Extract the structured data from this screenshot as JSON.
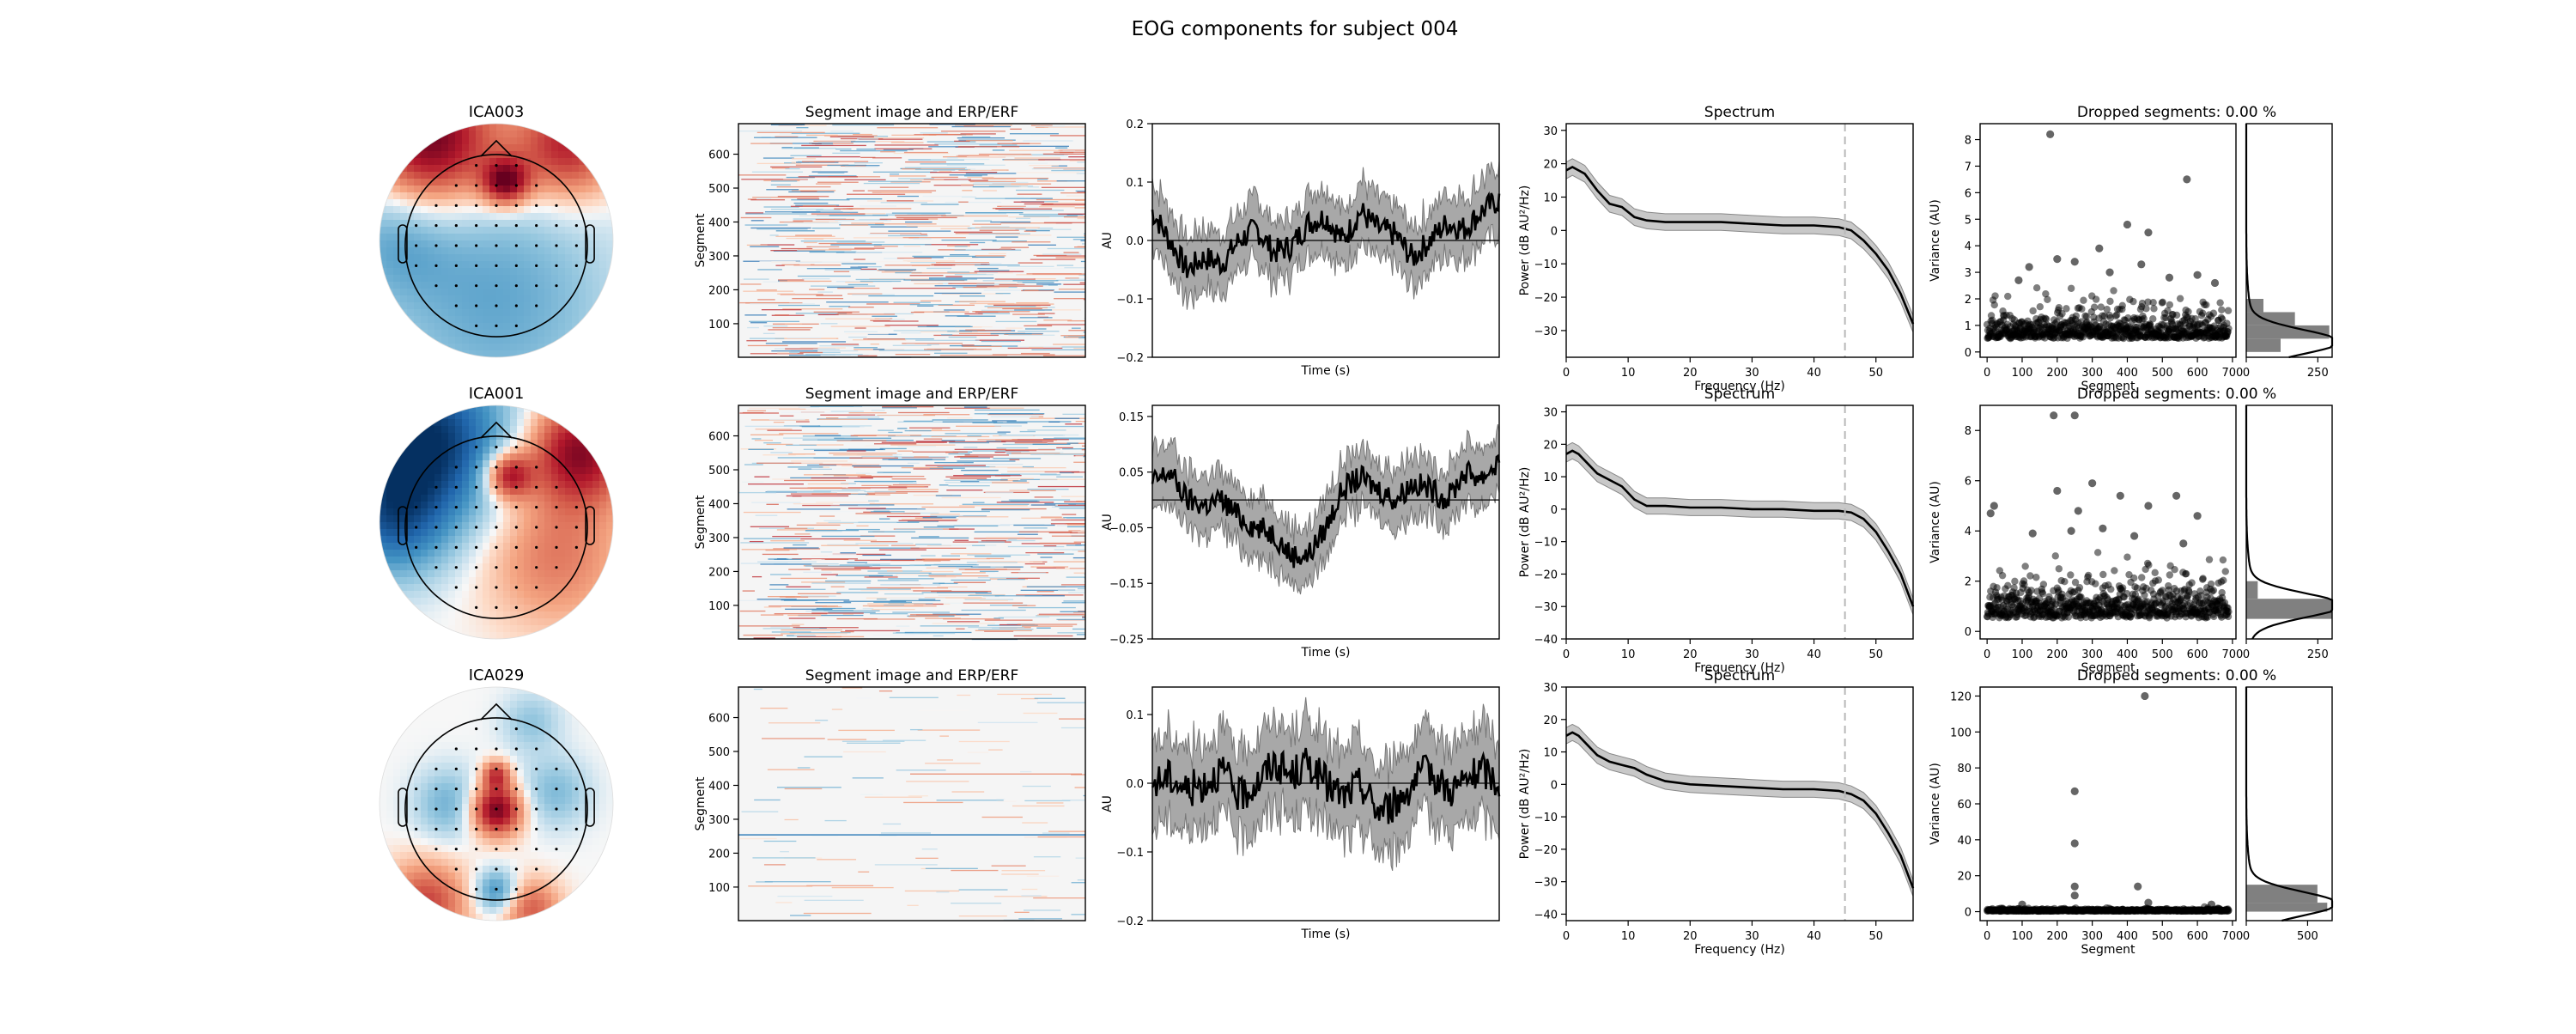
{
  "figure_title": "EOG components for subject 004",
  "colors": {
    "line": "#000000",
    "band": "#a8a8a8",
    "cutoff": "#b8b8b8",
    "point": "#000000",
    "hist": "#808080"
  },
  "chart_data": [
    {
      "component": "ICA003",
      "topomap": {
        "type": "heatmap",
        "pattern": "frontal-positive",
        "blobs": [
          {
            "x": -0.55,
            "y": 0.85,
            "r": 0.55,
            "v": 1.0
          },
          {
            "x": 0.6,
            "y": 0.8,
            "r": 0.45,
            "v": 0.75
          },
          {
            "x": 0.08,
            "y": 0.5,
            "r": 0.2,
            "v": 0.9
          },
          {
            "x": 0.0,
            "y": -0.5,
            "r": 1.0,
            "v": -0.4
          },
          {
            "x": -0.9,
            "y": 0.0,
            "r": 0.5,
            "v": -0.3
          }
        ]
      },
      "segment_image": {
        "type": "heatmap",
        "title": "Segment image and ERP/ERF",
        "ylabel": "Segment",
        "yticks": [
          100,
          200,
          300,
          400,
          500,
          600
        ],
        "ylim": [
          1,
          690
        ],
        "variance": 1.0
      },
      "erp": {
        "type": "line",
        "xlabel": "Time (s)",
        "ylabel": "AU",
        "ylim": [
          -0.2,
          0.2
        ],
        "yticks": [
          -0.2,
          -0.1,
          0.0,
          0.1,
          0.2
        ],
        "yticklabels": [
          "−0.2",
          "−0.1",
          "0.0",
          "0.1",
          "0.2"
        ],
        "hline": 0.0,
        "x": [
          0,
          0.05,
          0.1,
          0.15,
          0.2,
          0.25,
          0.3,
          0.35,
          0.4,
          0.45,
          0.5,
          0.55,
          0.6,
          0.65,
          0.7,
          0.75,
          0.8,
          0.85,
          0.9,
          0.95,
          1.0
        ],
        "mean": [
          0.05,
          0.0,
          -0.05,
          -0.03,
          -0.04,
          0.0,
          0.02,
          -0.02,
          -0.01,
          0.03,
          0.04,
          0.0,
          0.05,
          0.02,
          0.01,
          -0.03,
          0.0,
          0.03,
          0.02,
          0.05,
          0.07
        ],
        "band": 0.05
      },
      "spectrum": {
        "type": "line",
        "title": "Spectrum",
        "xlabel": "Frequency (Hz)",
        "ylabel": "Power (dB AU²/Hz)",
        "xlim": [
          0,
          56
        ],
        "ylim": [
          -38,
          32
        ],
        "xticks": [
          0,
          10,
          20,
          30,
          40,
          50
        ],
        "yticks": [
          -30,
          -20,
          -10,
          0,
          10,
          20,
          30
        ],
        "yticklabels": [
          "−30",
          "−20",
          "−10",
          "0",
          "10",
          "20",
          "30"
        ],
        "cutoff": 45,
        "x": [
          0,
          1,
          2,
          3,
          5,
          7,
          9,
          11,
          13,
          16,
          20,
          25,
          30,
          35,
          40,
          44,
          46,
          48,
          50,
          52,
          54,
          56
        ],
        "y": [
          18,
          19,
          18,
          17,
          12,
          8,
          7,
          4,
          3,
          2.5,
          2.5,
          2.5,
          2,
          1.5,
          1.5,
          1,
          0,
          -3,
          -7,
          -12,
          -19,
          -28
        ],
        "band": 2.5
      },
      "dropped": {
        "type": "scatter",
        "title": "Dropped segments: 0.00 %",
        "xlabel": "Segment",
        "ylabel": "Variance (AU)",
        "xlim": [
          -20,
          710
        ],
        "ylim": [
          -0.2,
          8.6
        ],
        "xticks": [
          0,
          100,
          200,
          300,
          400,
          500,
          600,
          700
        ],
        "yticks": [
          0,
          1,
          2,
          3,
          4,
          5,
          6,
          7,
          8
        ],
        "outliers": [
          [
            180,
            8.2
          ],
          [
            570,
            6.5
          ],
          [
            400,
            4.8
          ],
          [
            460,
            4.5
          ],
          [
            320,
            3.9
          ],
          [
            200,
            3.5
          ],
          [
            120,
            3.2
          ],
          [
            250,
            3.4
          ],
          [
            440,
            3.3
          ],
          [
            90,
            2.7
          ],
          [
            600,
            2.9
          ],
          [
            650,
            2.6
          ],
          [
            350,
            3.0
          ],
          [
            520,
            2.8
          ]
        ],
        "n_segments": 690,
        "bulk_mean": 0.7,
        "bulk_spread": 0.55,
        "seed": 3,
        "hist_xticks": [
          0,
          250
        ],
        "hist_xlim": [
          0,
          300
        ],
        "hist": [
          [
            0,
            0.5,
            120
          ],
          [
            0.5,
            1.0,
            290
          ],
          [
            1.0,
            1.5,
            170
          ],
          [
            1.5,
            2.0,
            60
          ]
        ]
      }
    },
    {
      "component": "ICA001",
      "topomap": {
        "type": "heatmap",
        "pattern": "lateral-bipolar",
        "blobs": [
          {
            "x": -0.6,
            "y": 0.7,
            "r": 0.7,
            "v": -1.0
          },
          {
            "x": -0.9,
            "y": 0.0,
            "r": 0.5,
            "v": -0.6
          },
          {
            "x": 0.7,
            "y": 0.6,
            "r": 0.45,
            "v": 0.9
          },
          {
            "x": 0.1,
            "y": 0.4,
            "r": 0.2,
            "v": 0.85
          },
          {
            "x": 0.5,
            "y": -0.3,
            "r": 0.6,
            "v": 0.4
          }
        ]
      },
      "segment_image": {
        "type": "heatmap",
        "title": "Segment image and ERP/ERF",
        "ylabel": "Segment",
        "yticks": [
          100,
          200,
          300,
          400,
          500,
          600
        ],
        "ylim": [
          1,
          690
        ],
        "variance": 1.0
      },
      "erp": {
        "type": "line",
        "xlabel": "Time (s)",
        "ylabel": "AU",
        "ylim": [
          -0.25,
          0.17
        ],
        "yticks": [
          -0.25,
          -0.15,
          -0.05,
          0.05,
          0.15
        ],
        "yticklabels": [
          "−0.25",
          "−0.15",
          "−0.05",
          "0.05",
          "0.15"
        ],
        "hline": 0.0,
        "x": [
          0,
          0.05,
          0.1,
          0.15,
          0.2,
          0.25,
          0.3,
          0.35,
          0.4,
          0.45,
          0.5,
          0.55,
          0.6,
          0.65,
          0.7,
          0.75,
          0.8,
          0.85,
          0.9,
          0.95,
          1.0
        ],
        "mean": [
          0.03,
          0.05,
          0.0,
          -0.01,
          0.0,
          -0.03,
          -0.05,
          -0.06,
          -0.1,
          -0.1,
          -0.05,
          0.02,
          0.04,
          0.02,
          0.0,
          0.03,
          0.02,
          0.0,
          0.05,
          0.04,
          0.07
        ],
        "band": 0.05
      },
      "spectrum": {
        "type": "line",
        "title": "Spectrum",
        "xlabel": "Frequency (Hz)",
        "ylabel": "Power (dB AU²/Hz)",
        "xlim": [
          0,
          56
        ],
        "ylim": [
          -40,
          32
        ],
        "xticks": [
          0,
          10,
          20,
          30,
          40,
          50
        ],
        "yticks": [
          -40,
          -30,
          -20,
          -10,
          0,
          10,
          20,
          30
        ],
        "yticklabels": [
          "−40",
          "−30",
          "−20",
          "−10",
          "0",
          "10",
          "20",
          "30"
        ],
        "cutoff": 45,
        "x": [
          0,
          1,
          2,
          3,
          5,
          7,
          9,
          11,
          13,
          16,
          20,
          25,
          30,
          35,
          40,
          44,
          46,
          48,
          50,
          52,
          54,
          56
        ],
        "y": [
          17,
          18,
          17,
          15,
          11,
          9,
          7,
          3,
          1,
          1,
          0.5,
          0.5,
          0,
          0,
          -0.5,
          -0.5,
          -1,
          -3,
          -7,
          -13,
          -20,
          -30
        ],
        "band": 2.5
      },
      "dropped": {
        "type": "scatter",
        "title": "Dropped segments: 0.00 %",
        "xlabel": "Segment",
        "ylabel": "Variance (AU)",
        "xlim": [
          -20,
          710
        ],
        "ylim": [
          -0.3,
          9.0
        ],
        "xticks": [
          0,
          100,
          200,
          300,
          400,
          500,
          600,
          700
        ],
        "yticks": [
          0,
          2,
          4,
          6,
          8
        ],
        "outliers": [
          [
            190,
            8.6
          ],
          [
            250,
            8.6
          ],
          [
            300,
            5.9
          ],
          [
            200,
            5.6
          ],
          [
            20,
            5.0
          ],
          [
            10,
            4.7
          ],
          [
            260,
            4.8
          ],
          [
            380,
            5.4
          ],
          [
            460,
            5.0
          ],
          [
            540,
            5.4
          ],
          [
            600,
            4.6
          ],
          [
            240,
            4.0
          ],
          [
            420,
            3.8
          ],
          [
            130,
            3.9
          ],
          [
            330,
            4.1
          ],
          [
            560,
            3.5
          ]
        ],
        "n_segments": 690,
        "bulk_mean": 0.8,
        "bulk_spread": 0.75,
        "seed": 11,
        "hist_xticks": [
          0,
          250
        ],
        "hist_xlim": [
          0,
          300
        ],
        "hist": [
          [
            0.5,
            1.3,
            300
          ],
          [
            1.3,
            2.0,
            40
          ]
        ]
      }
    },
    {
      "component": "ICA029",
      "topomap": {
        "type": "heatmap",
        "pattern": "central-focal",
        "blobs": [
          {
            "x": 0.0,
            "y": -0.05,
            "r": 0.22,
            "v": 1.0
          },
          {
            "x": 0.0,
            "y": 0.25,
            "r": 0.12,
            "v": 0.6
          },
          {
            "x": -0.6,
            "y": -0.85,
            "r": 0.35,
            "v": 0.6
          },
          {
            "x": 0.3,
            "y": -0.9,
            "r": 0.25,
            "v": 0.5
          },
          {
            "x": -0.4,
            "y": 0.0,
            "r": 0.3,
            "v": -0.35
          },
          {
            "x": 0.5,
            "y": 0.1,
            "r": 0.3,
            "v": -0.3
          },
          {
            "x": 0.0,
            "y": -0.75,
            "r": 0.18,
            "v": -0.55
          },
          {
            "x": 0.3,
            "y": 0.7,
            "r": 0.25,
            "v": -0.25
          }
        ]
      },
      "segment_image": {
        "type": "heatmap",
        "title": "Segment image and ERP/ERF",
        "ylabel": "Segment",
        "yticks": [
          100,
          200,
          300,
          400,
          500,
          600
        ],
        "ylim": [
          1,
          690
        ],
        "variance": 0.12
      },
      "erp": {
        "type": "line",
        "xlabel": "Time (s)",
        "ylabel": "AU",
        "ylim": [
          -0.2,
          0.14
        ],
        "yticks": [
          -0.2,
          -0.1,
          0.0,
          0.1
        ],
        "yticklabels": [
          "−0.2",
          "−0.1",
          "0.0",
          "0.1"
        ],
        "hline": 0.0,
        "x": [
          0,
          0.05,
          0.1,
          0.15,
          0.2,
          0.25,
          0.3,
          0.35,
          0.4,
          0.45,
          0.5,
          0.55,
          0.6,
          0.65,
          0.7,
          0.75,
          0.8,
          0.85,
          0.9,
          0.95,
          1.0
        ],
        "mean": [
          0.0,
          0.01,
          -0.01,
          0.0,
          0.02,
          -0.02,
          0.0,
          0.03,
          0.01,
          0.03,
          0.0,
          -0.02,
          0.0,
          -0.04,
          -0.03,
          0.0,
          0.02,
          -0.01,
          0.0,
          0.02,
          0.0
        ],
        "band": 0.06
      },
      "spectrum": {
        "type": "line",
        "title": "Spectrum",
        "xlabel": "Frequency (Hz)",
        "ylabel": "Power (dB AU²/Hz)",
        "xlim": [
          0,
          56
        ],
        "ylim": [
          -42,
          30
        ],
        "xticks": [
          0,
          10,
          20,
          30,
          40,
          50
        ],
        "yticks": [
          -40,
          -30,
          -20,
          -10,
          0,
          10,
          20,
          30
        ],
        "yticklabels": [
          "−40",
          "−30",
          "−20",
          "−10",
          "0",
          "10",
          "20",
          "30"
        ],
        "cutoff": 45,
        "x": [
          0,
          1,
          2,
          3,
          5,
          7,
          9,
          11,
          13,
          16,
          20,
          25,
          30,
          35,
          40,
          44,
          46,
          48,
          50,
          52,
          54,
          56
        ],
        "y": [
          15,
          16,
          15,
          13,
          9,
          7,
          6,
          5,
          3,
          1,
          0,
          -0.5,
          -1,
          -1.5,
          -1.5,
          -2,
          -3,
          -5,
          -9,
          -15,
          -22,
          -32
        ],
        "band": 2.5
      },
      "dropped": {
        "type": "scatter",
        "title": "Dropped segments: 0.00 %",
        "xlabel": "Segment",
        "ylabel": "Variance (AU)",
        "xlim": [
          -20,
          710
        ],
        "ylim": [
          -5,
          125
        ],
        "xticks": [
          0,
          100,
          200,
          300,
          400,
          500,
          600,
          700
        ],
        "yticks": [
          0,
          20,
          40,
          60,
          80,
          100,
          120
        ],
        "outliers": [
          [
            450,
            120
          ],
          [
            250,
            67
          ],
          [
            250,
            38
          ],
          [
            250,
            14
          ],
          [
            250,
            9
          ],
          [
            430,
            14
          ],
          [
            460,
            5
          ],
          [
            100,
            4
          ],
          [
            640,
            4
          ]
        ],
        "n_segments": 690,
        "bulk_mean": 0.5,
        "bulk_spread": 0.6,
        "seed": 29,
        "hist_xticks": [
          0,
          500
        ],
        "hist_xlim": [
          0,
          700
        ],
        "hist": [
          [
            0,
            5,
            660
          ],
          [
            5,
            15,
            580
          ]
        ]
      }
    }
  ]
}
